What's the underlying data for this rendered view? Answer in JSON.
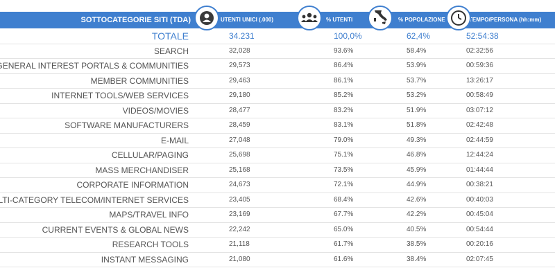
{
  "header": {
    "category": "SOTTOCATEGORIE SITI  (TDA)",
    "users": "UTENTI UNICI (.000)",
    "pct_users": "% UTENTI",
    "pct_population": "% POPOLAZIONE",
    "time_per_person": "TEMPO/PERSONA (hh:mm)"
  },
  "icons": {
    "users": "person-icon",
    "pct_users": "group-icon",
    "pct_population": "italy-map-icon",
    "time_per_person": "clock-icon"
  },
  "colors": {
    "accent": "#3f7fcf",
    "text": "#555555"
  },
  "total": {
    "category": "TOTALE",
    "users": "34.231",
    "pct_users": "100,0%",
    "pct_population": "62,4%",
    "time": "52:54:38"
  },
  "chart_data": {
    "type": "table",
    "columns": [
      "SOTTOCATEGORIE SITI  (TDA)",
      "UTENTI UNICI (.000)",
      "% UTENTI",
      "% POPOLAZIONE",
      "TEMPO/PERSONA (hh:mm)"
    ],
    "rows": [
      {
        "category": "SEARCH",
        "users": "32,028",
        "pct_users": "93.6%",
        "pct_population": "58.4%",
        "time": "02:32:56"
      },
      {
        "category": "GENERAL INTEREST PORTALS & COMMUNITIES",
        "users": "29,573",
        "pct_users": "86.4%",
        "pct_population": "53.9%",
        "time": "00:59:36"
      },
      {
        "category": "MEMBER COMMUNITIES",
        "users": "29,463",
        "pct_users": "86.1%",
        "pct_population": "53.7%",
        "time": "13:26:17"
      },
      {
        "category": "INTERNET TOOLS/WEB SERVICES",
        "users": "29,180",
        "pct_users": "85.2%",
        "pct_population": "53.2%",
        "time": "00:58:49"
      },
      {
        "category": "VIDEOS/MOVIES",
        "users": "28,477",
        "pct_users": "83.2%",
        "pct_population": "51.9%",
        "time": "03:07:12"
      },
      {
        "category": "SOFTWARE MANUFACTURERS",
        "users": "28,459",
        "pct_users": "83.1%",
        "pct_population": "51.8%",
        "time": "02:42:48"
      },
      {
        "category": "E-MAIL",
        "users": "27,048",
        "pct_users": "79.0%",
        "pct_population": "49.3%",
        "time": "02:44:59"
      },
      {
        "category": "CELLULAR/PAGING",
        "users": "25,698",
        "pct_users": "75.1%",
        "pct_population": "46.8%",
        "time": "12:44:24"
      },
      {
        "category": "MASS MERCHANDISER",
        "users": "25,168",
        "pct_users": "73.5%",
        "pct_population": "45.9%",
        "time": "01:44:44"
      },
      {
        "category": "CORPORATE INFORMATION",
        "users": "24,673",
        "pct_users": "72.1%",
        "pct_population": "44.9%",
        "time": "00:38:21"
      },
      {
        "category": "MULTI-CATEGORY TELECOM/INTERNET SERVICES",
        "users": "23,405",
        "pct_users": "68.4%",
        "pct_population": "42.6%",
        "time": "00:40:03"
      },
      {
        "category": "MAPS/TRAVEL INFO",
        "users": "23,169",
        "pct_users": "67.7%",
        "pct_population": "42.2%",
        "time": "00:45:04"
      },
      {
        "category": "CURRENT EVENTS & GLOBAL NEWS",
        "users": "22,242",
        "pct_users": "65.0%",
        "pct_population": "40.5%",
        "time": "00:54:44"
      },
      {
        "category": "RESEARCH TOOLS",
        "users": "21,118",
        "pct_users": "61.7%",
        "pct_population": "38.5%",
        "time": "00:20:16"
      },
      {
        "category": "INSTANT MESSAGING",
        "users": "21,080",
        "pct_users": "61.6%",
        "pct_population": "38.4%",
        "time": "02:07:45"
      }
    ]
  }
}
